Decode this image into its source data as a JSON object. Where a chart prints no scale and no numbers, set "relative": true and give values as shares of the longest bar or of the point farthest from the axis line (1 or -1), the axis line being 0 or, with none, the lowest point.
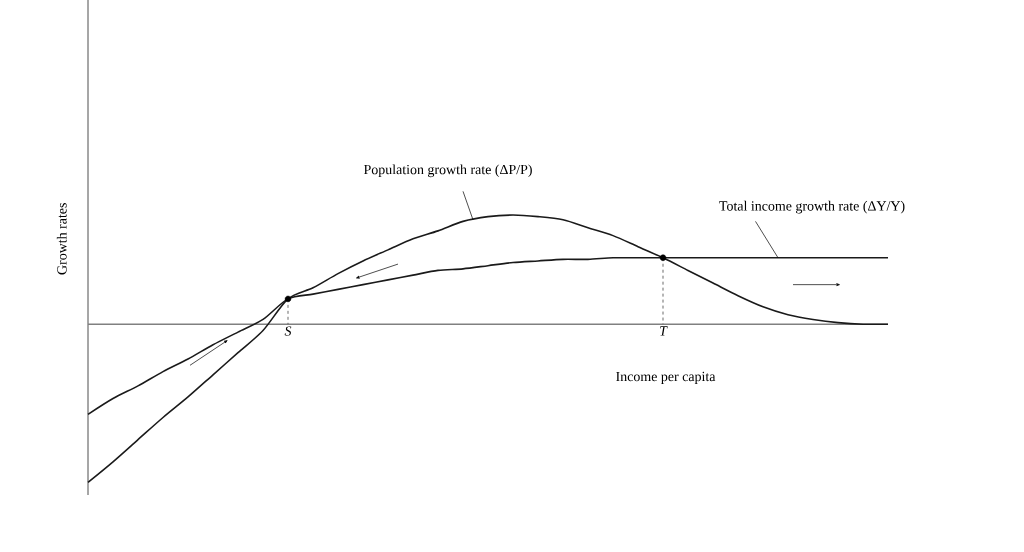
{
  "chart_data": {
    "type": "line",
    "relative": true,
    "xlabel": "Income per capita",
    "ylabel": "Growth rates",
    "categories": [
      null,
      null,
      null,
      null,
      null,
      null,
      null,
      null,
      "S",
      null,
      null,
      null,
      null,
      null,
      null,
      null,
      null,
      null,
      null,
      null,
      null,
      null,
      null,
      "T",
      null,
      null,
      null,
      null,
      null,
      null,
      null,
      null,
      null
    ],
    "series": [
      {
        "color": "#1a1a1a",
        "values": [
          -1.0,
          -0.87,
          -0.73,
          -0.59,
          -0.46,
          -0.32,
          -0.18,
          -0.04,
          0.16,
          0.23,
          0.32,
          0.4,
          0.47,
          0.54,
          0.59,
          0.65,
          0.68,
          0.69,
          0.68,
          0.66,
          0.61,
          0.56,
          0.49,
          0.42,
          0.34,
          0.26,
          0.18,
          0.11,
          0.06,
          0.03,
          0.01,
          0,
          0
        ]
      },
      {
        "color": "#1a1a1a",
        "values": [
          -0.57,
          -0.47,
          -0.39,
          -0.3,
          -0.22,
          -0.13,
          -0.05,
          0.03,
          0.16,
          0.19,
          0.22,
          0.25,
          0.28,
          0.31,
          0.34,
          0.35,
          0.37,
          0.39,
          0.4,
          0.41,
          0.41,
          0.42,
          0.42,
          0.42,
          0.42,
          0.42,
          0.42,
          0.42,
          0.42,
          0.42,
          0.42,
          0.42,
          0.42
        ]
      },
      {
        "type": "scatter",
        "color": "#000000",
        "marker": "circle",
        "x": [
          "S",
          "T"
        ],
        "values": [
          0.16,
          0.42
        ]
      }
    ],
    "annotations": [
      "Population growth rate (ΔP/P)",
      "Total income growth rate (ΔY/Y)"
    ],
    "legend": false,
    "marker": "none",
    "line_style": "solid"
  }
}
